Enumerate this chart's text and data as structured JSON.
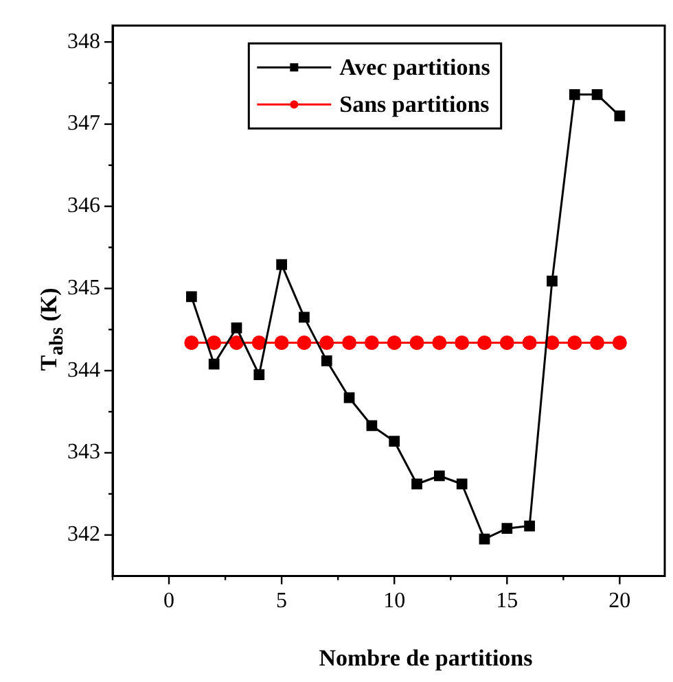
{
  "chart_data": {
    "type": "line",
    "xlabel": "Nombre de partitions",
    "ylabel": "T$_{abs}$ (K)",
    "x": [
      1,
      2,
      3,
      4,
      5,
      6,
      7,
      8,
      9,
      10,
      11,
      12,
      13,
      14,
      15,
      16,
      17,
      18,
      19,
      20
    ],
    "series": [
      {
        "name": "Avec partitions",
        "color": "#000000",
        "marker": "square",
        "values": [
          344.9,
          344.08,
          344.52,
          343.95,
          345.29,
          344.65,
          344.12,
          343.67,
          343.33,
          343.14,
          342.62,
          342.72,
          342.62,
          341.95,
          342.08,
          342.11,
          345.09,
          347.36,
          347.36,
          347.1
        ]
      },
      {
        "name": "Sans partitions",
        "color": "#ff0000",
        "marker": "circle",
        "values": [
          344.34,
          344.34,
          344.34,
          344.34,
          344.34,
          344.34,
          344.34,
          344.34,
          344.34,
          344.34,
          344.34,
          344.34,
          344.34,
          344.34,
          344.34,
          344.34,
          344.34,
          344.34,
          344.34,
          344.34
        ]
      }
    ],
    "xlim": [
      -2.5,
      22
    ],
    "xticks": [
      {
        "value": -2.5,
        "label": null
      },
      0,
      {
        "value": 2.5,
        "label": null
      },
      5,
      {
        "value": 7.5,
        "label": null
      },
      10,
      {
        "value": 12.5,
        "label": null
      },
      15,
      {
        "value": 17.5,
        "label": null
      },
      20
    ],
    "ylim": [
      341.5,
      348.2
    ],
    "yticks": [
      342,
      {
        "value": 342.5,
        "label": null
      },
      343,
      {
        "value": 343.5,
        "label": null
      },
      344,
      {
        "value": 344.5,
        "label": null
      },
      345,
      {
        "value": 345.5,
        "label": null
      },
      346,
      {
        "value": 346.5,
        "label": null
      },
      347,
      {
        "value": 347.5,
        "label": null
      },
      348
    ],
    "grid": false,
    "legend": "top",
    "line_style": "solid"
  }
}
